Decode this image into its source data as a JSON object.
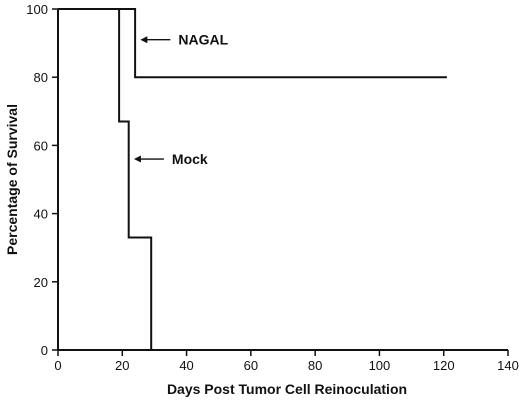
{
  "chart_data": {
    "type": "line",
    "xlabel": "Days Post Tumor Cell Reinoculation",
    "ylabel": "Percentage of Survival",
    "xlim": [
      0,
      140
    ],
    "ylim": [
      0,
      100
    ],
    "x_ticks": [
      0,
      20,
      40,
      60,
      80,
      100,
      120,
      140
    ],
    "y_ticks": [
      0,
      20,
      40,
      60,
      80,
      100
    ],
    "grid": false,
    "step": true,
    "series": [
      {
        "name": "NAGAL",
        "points": [
          [
            0,
            100
          ],
          [
            24,
            100
          ],
          [
            24,
            80
          ],
          [
            121,
            80
          ]
        ]
      },
      {
        "name": "Mock",
        "points": [
          [
            0,
            100
          ],
          [
            19,
            100
          ],
          [
            19,
            67
          ],
          [
            22,
            67
          ],
          [
            22,
            33
          ],
          [
            29,
            33
          ],
          [
            29,
            0
          ],
          [
            140,
            0
          ]
        ]
      }
    ],
    "annotations": [
      {
        "text": "NAGAL",
        "series": "NAGAL",
        "arrow_to": [
          25,
          91
        ]
      },
      {
        "text": "Mock",
        "series": "Mock",
        "arrow_to": [
          23,
          56
        ]
      }
    ],
    "colors": {
      "line": "#111111",
      "axis": "#111111"
    }
  }
}
